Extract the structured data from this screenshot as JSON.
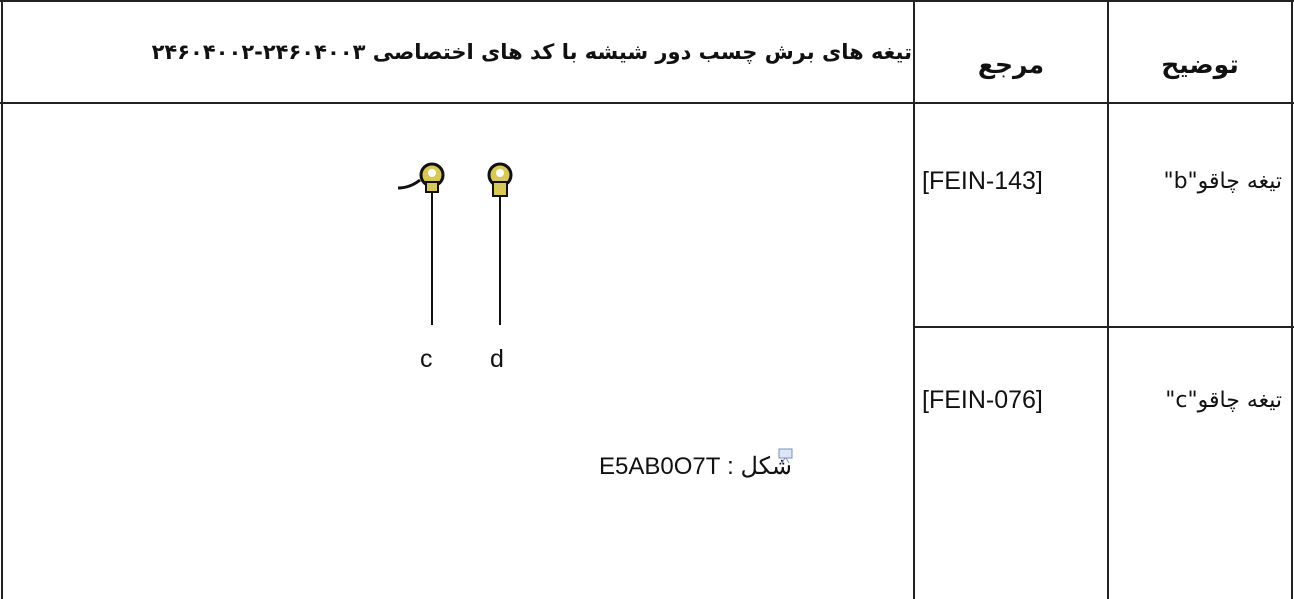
{
  "table": {
    "header": [
      "تیغه های برش چسب دور شیشه با کد های اختصاصی ۲۴۶۰۴۰۰۳-۲۴۶۰۴۰۰۲",
      "مرجع",
      "توضیح"
    ],
    "rows": [
      [
        "[FEIN-143]",
        "تیغه چاقو\"b\""
      ],
      [
        "[FEIN-076]",
        "تیغه چاقو\"c\""
      ]
    ]
  },
  "figure": {
    "labels": [
      "c",
      "d"
    ],
    "caption": "شکل : E5AB0O7T"
  }
}
